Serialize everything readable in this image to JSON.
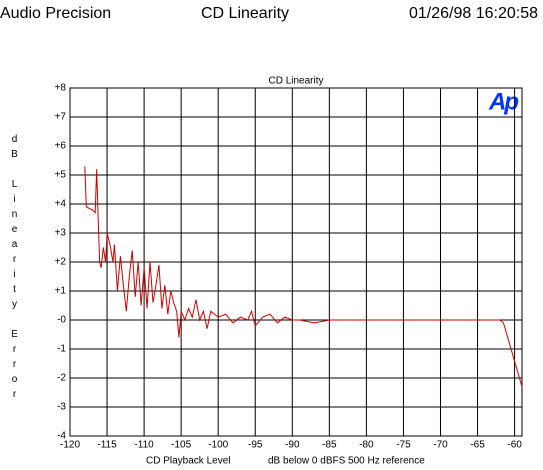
{
  "header": {
    "left": "Audio Precision",
    "center": "CD Linearity",
    "right": "01/26/98 16:20:58"
  },
  "chart_data": {
    "type": "line",
    "title": "CD Linearity",
    "logo": "Ap",
    "xlabel": "CD Playback Level",
    "xlabel2": "dB below 0 dBFS 500 Hz reference",
    "ylabel": "dB Linearity Error",
    "xlim": [
      -120,
      -59
    ],
    "xticks": [
      -120,
      -115,
      -110,
      -105,
      -100,
      -95,
      -90,
      -85,
      -80,
      -75,
      -70,
      -65,
      -60
    ],
    "ylim": [
      -4,
      8
    ],
    "yticks": [
      -4,
      -3,
      -2,
      -1,
      {
        "value": 0,
        "label": "-0"
      },
      {
        "value": 1,
        "label": "+1"
      },
      {
        "value": 2,
        "label": "+2"
      },
      {
        "value": 3,
        "label": "+3"
      },
      {
        "value": 4,
        "label": "+4"
      },
      {
        "value": 5,
        "label": "+5"
      },
      {
        "value": 6,
        "label": "+6"
      },
      {
        "value": 7,
        "label": "+7"
      },
      {
        "value": 8,
        "label": "+8"
      }
    ],
    "grid": true,
    "series": [
      {
        "color": "#cc0000",
        "x": [
          -118,
          -117.8,
          -117,
          -116.6,
          -116.4,
          -116.2,
          -116,
          -115.8,
          -115.5,
          -115.2,
          -115,
          -114.6,
          -114.2,
          -114,
          -113.6,
          -113.2,
          -112.8,
          -112.4,
          -112,
          -111.6,
          -111.2,
          -110.8,
          -110.4,
          -110,
          -109.6,
          -109.2,
          -108.8,
          -108.4,
          -108,
          -107.6,
          -107.2,
          -106.8,
          -106.4,
          -106,
          -105.6,
          -105.3,
          -105,
          -104.5,
          -104,
          -103.5,
          -103,
          -102.5,
          -102,
          -101.5,
          -101,
          -100,
          -99,
          -98,
          -97,
          -96,
          -95.5,
          -95,
          -94,
          -93,
          -92,
          -91,
          -90,
          -89,
          -87,
          -85,
          -80,
          -75,
          -70,
          -65,
          -62,
          -61.5,
          -59
        ],
        "values": [
          5.3,
          3.9,
          3.8,
          3.7,
          5.2,
          3.5,
          2.0,
          1.8,
          2.5,
          2.0,
          3.0,
          2.6,
          2.0,
          2.6,
          1.0,
          2.2,
          1.2,
          0.3,
          1.5,
          2.4,
          0.8,
          2.0,
          0.5,
          1.8,
          0.4,
          2.0,
          0.6,
          1.2,
          1.9,
          0.4,
          1.2,
          0.2,
          1.0,
          0.6,
          0.3,
          -0.6,
          0.3,
          0.0,
          0.4,
          0.1,
          0.7,
          0.0,
          0.3,
          -0.3,
          0.3,
          0.1,
          0.2,
          -0.1,
          0.1,
          0.0,
          0.3,
          -0.2,
          0.1,
          0.2,
          -0.1,
          0.1,
          0.0,
          0.0,
          -0.1,
          0.0,
          0.0,
          0.0,
          0.0,
          0.0,
          0.0,
          -0.1,
          -2.3
        ]
      }
    ]
  }
}
